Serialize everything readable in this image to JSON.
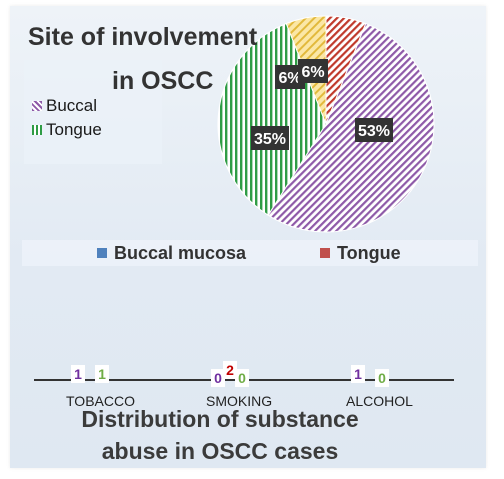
{
  "chart_data": [
    {
      "type": "pie",
      "title_line1": "Site of involvement",
      "title_line2": "in OSCC",
      "legend_series": [
        "Buccal",
        "Tongue"
      ],
      "legend_categories": [
        "Buccal mucosa",
        "Tongue"
      ],
      "slices": [
        {
          "label": "53%",
          "value": 53,
          "pattern": "diag-purple"
        },
        {
          "label": "35%",
          "value": 35,
          "pattern": "vert-green"
        },
        {
          "label": "6%",
          "value": 6,
          "pattern": "yellow"
        },
        {
          "label": "6%",
          "value": 6,
          "pattern": "diag-red"
        }
      ]
    },
    {
      "type": "bar",
      "title_line1": "Distribution of substance",
      "title_line2": "abuse in OSCC cases",
      "categories": [
        "TOBACCO",
        "SMOKING",
        "ALCOHOL"
      ],
      "series": [
        {
          "values": [
            1,
            0,
            1
          ],
          "color": "#7030a0"
        },
        {
          "values": [
            null,
            2,
            null
          ],
          "color": "#c00000"
        },
        {
          "values": [
            1,
            0,
            0
          ],
          "color": "#70ad47"
        }
      ]
    }
  ],
  "colors": {
    "buccal_mucosa": "#4f81bd",
    "tongue": "#c0504d",
    "buccal_pattern": "#8e5aa8",
    "tongue_pattern": "#2f9c45",
    "yellow_slice": "#f2d16b",
    "red_slice": "#c0392b",
    "label_bg": "#333333"
  }
}
